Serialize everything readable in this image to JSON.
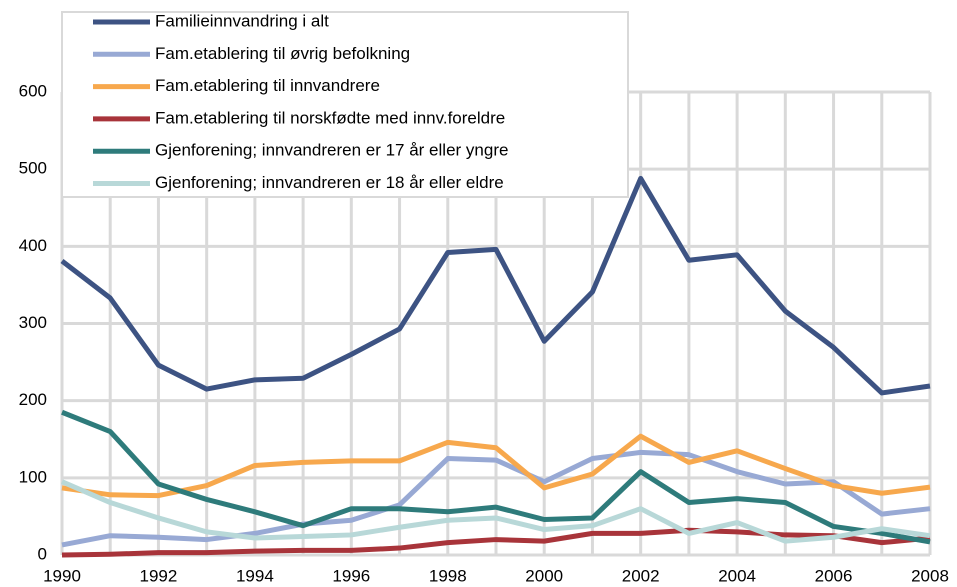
{
  "chart_data": {
    "type": "line",
    "x": [
      1990,
      1991,
      1992,
      1993,
      1994,
      1995,
      1996,
      1997,
      1998,
      1999,
      2000,
      2001,
      2002,
      2003,
      2004,
      2005,
      2006,
      2007,
      2008
    ],
    "xlim": [
      1990,
      2008
    ],
    "xticks": [
      1990,
      1992,
      1994,
      1996,
      1998,
      2000,
      2002,
      2004,
      2006,
      2008
    ],
    "ylim": [
      0,
      600
    ],
    "yticks": [
      0,
      100,
      200,
      300,
      400,
      500,
      600
    ],
    "grid": true,
    "legend": "upper left",
    "series": [
      {
        "name": "Familieinnvandring i alt",
        "color": "#3d5383",
        "values": [
          381,
          333,
          246,
          215,
          227,
          229,
          260,
          293,
          392,
          396,
          277,
          341,
          488,
          382,
          389,
          316,
          269,
          210,
          219
        ]
      },
      {
        "name": "Fam.etablering til øvrig befolkning",
        "color": "#98a9d4",
        "values": [
          13,
          25,
          23,
          20,
          28,
          40,
          45,
          65,
          125,
          123,
          95,
          125,
          133,
          130,
          108,
          92,
          95,
          53,
          60
        ]
      },
      {
        "name": "Fam.etablering til innvandrere",
        "color": "#f7a84d",
        "values": [
          87,
          78,
          77,
          90,
          116,
          120,
          122,
          122,
          146,
          139,
          87,
          105,
          154,
          120,
          135,
          112,
          90,
          80,
          88
        ]
      },
      {
        "name": "Fam.etablering til norskfødte med innv.foreldre",
        "color": "#a8343a",
        "values": [
          0,
          1,
          3,
          3,
          5,
          6,
          6,
          9,
          16,
          20,
          18,
          28,
          28,
          32,
          30,
          26,
          25,
          16,
          22
        ]
      },
      {
        "name": "Gjenforening; innvandreren er 17 år eller yngre",
        "color": "#2e7b7b",
        "values": [
          185,
          160,
          92,
          72,
          56,
          38,
          60,
          60,
          56,
          62,
          46,
          48,
          108,
          68,
          73,
          68,
          37,
          28,
          17
        ]
      },
      {
        "name": "Gjenforening; innvandreren er 18 år eller eldre",
        "color": "#b8d8d8",
        "values": [
          95,
          68,
          48,
          30,
          22,
          24,
          26,
          36,
          45,
          48,
          33,
          38,
          60,
          28,
          42,
          18,
          23,
          34,
          25
        ]
      }
    ]
  }
}
